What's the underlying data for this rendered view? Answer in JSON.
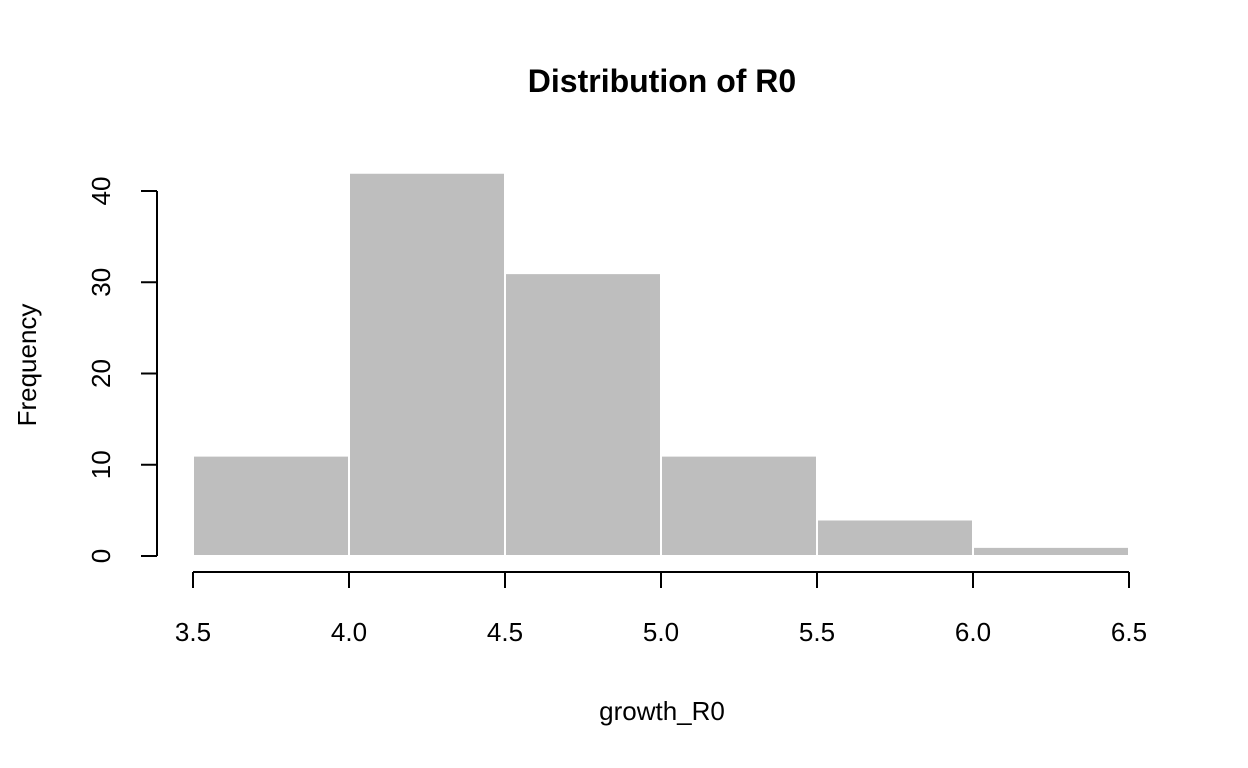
{
  "chart_data": {
    "type": "bar",
    "title": "Distribution of R0",
    "xlabel": "growth_R0",
    "ylabel": "Frequency",
    "bins": [
      {
        "start": 3.5,
        "end": 4.0,
        "count": 11
      },
      {
        "start": 4.0,
        "end": 4.5,
        "count": 42
      },
      {
        "start": 4.5,
        "end": 5.0,
        "count": 31
      },
      {
        "start": 5.0,
        "end": 5.5,
        "count": 11
      },
      {
        "start": 5.5,
        "end": 6.0,
        "count": 4
      },
      {
        "start": 6.0,
        "end": 6.5,
        "count": 1
      }
    ],
    "xlim": [
      3.5,
      6.5
    ],
    "ylim": [
      0,
      42
    ],
    "x_ticks": [
      "3.5",
      "4.0",
      "4.5",
      "5.0",
      "5.5",
      "6.0",
      "6.5"
    ],
    "y_ticks": [
      "0",
      "10",
      "20",
      "30",
      "40"
    ],
    "bar_color": "#bebebe",
    "bar_border_color": "#ffffff",
    "grid": false
  }
}
